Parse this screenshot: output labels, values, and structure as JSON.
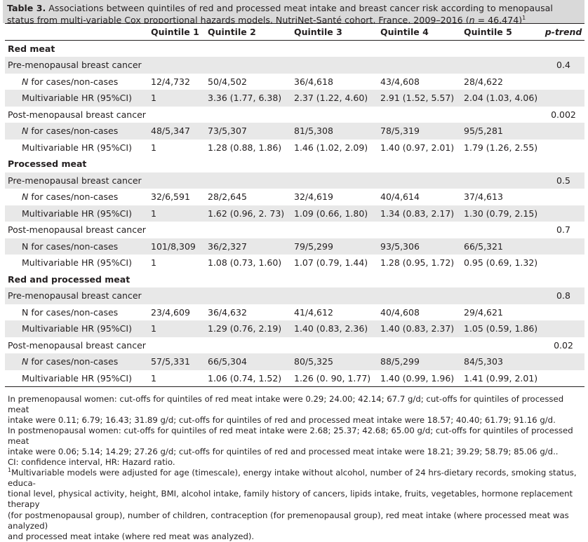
{
  "caption": {
    "label": "Table 3.",
    "text_a": "Associations between quintiles of red and processed meat intake and breast cancer risk according to menopausal status from multi-variable Cox proportional hazards models, NutriNet-Santé cohort, France, 2009–2016 (",
    "n_symbol": "n",
    "text_b": " = 46,474)",
    "sup": "1"
  },
  "headers": [
    "",
    "Quintile 1",
    "Quintile 2",
    "Quintile 3",
    "Quintile 4",
    "Quintile 5",
    "p-trend"
  ],
  "sections": [
    {
      "title": "Red meat",
      "groups": [
        {
          "label": "Pre-menopausal breast cancer",
          "p_trend": "0.4",
          "rows": [
            {
              "label_italic": "N",
              "label_rest": " for cases/non-cases",
              "values": [
                "12/4,732",
                "50/4,502",
                "36/4,618",
                "43/4,608",
                "28/4,622"
              ]
            },
            {
              "label_italic": "",
              "label_rest": "Multivariable HR (95%CI)",
              "values": [
                "1",
                "3.36 (1.77, 6.38)",
                "2.37 (1.22, 4.60)",
                "2.91 (1.52, 5.57)",
                "2.04 (1.03, 4.06)"
              ]
            }
          ]
        },
        {
          "label": "Post-menopausal breast cancer",
          "p_trend": "0.002",
          "rows": [
            {
              "label_italic": "N",
              "label_rest": " for cases/non-cases",
              "values": [
                "48/5,347",
                "73/5,307",
                "81/5,308",
                "78/5,319",
                "95/5,281"
              ]
            },
            {
              "label_italic": "",
              "label_rest": "Multivariable HR (95%CI)",
              "values": [
                "1",
                "1.28 (0.88, 1.86)",
                "1.46 (1.02, 2.09)",
                "1.40 (0.97, 2.01)",
                "1.79 (1.26, 2.55)"
              ]
            }
          ]
        }
      ]
    },
    {
      "title": "Processed meat",
      "groups": [
        {
          "label": "Pre-menopausal breast cancer",
          "p_trend": "0.5",
          "rows": [
            {
              "label_italic": "N",
              "label_rest": " for cases/non-cases",
              "values": [
                "32/6,591",
                "28/2,645",
                "32/4,619",
                "40/4,614",
                "37/4,613"
              ]
            },
            {
              "label_italic": "",
              "label_rest": "Multivariable HR (95%CI)",
              "values": [
                "1",
                "1.62 (0.96, 2. 73)",
                "1.09 (0.66, 1.80)",
                "1.34 (0.83, 2.17)",
                "1.30 (0.79, 2.15)"
              ]
            }
          ]
        },
        {
          "label": "Post-menopausal breast cancer",
          "p_trend": "0.7",
          "rows": [
            {
              "label_italic": "",
              "label_rest": "N for cases/non-cases",
              "values": [
                "101/8,309",
                "36/2,327",
                "79/5,299",
                "93/5,306",
                "66/5,321"
              ]
            },
            {
              "label_italic": "",
              "label_rest": "Multivariable HR (95%CI)",
              "values": [
                "1",
                "1.08 (0.73, 1.60)",
                "1.07 (0.79, 1.44)",
                "1.28 (0.95, 1.72)",
                "0.95 (0.69, 1.32)"
              ]
            }
          ]
        }
      ]
    },
    {
      "title": "Red and processed meat",
      "groups": [
        {
          "label": "Pre-menopausal breast cancer",
          "p_trend": "0.8",
          "rows": [
            {
              "label_italic": "",
              "label_rest": "N for cases/non-cases",
              "values": [
                "23/4,609",
                "36/4,632",
                "41/4,612",
                "40/4,608",
                "29/4,621"
              ]
            },
            {
              "label_italic": "",
              "label_rest": "Multivariable HR (95%CI)",
              "values": [
                "1",
                "1.29 (0.76, 2.19)",
                "1.40 (0.83, 2.36)",
                "1.40 (0.83, 2.37)",
                "1.05 (0.59, 1.86)"
              ]
            }
          ]
        },
        {
          "label": "Post-menopausal breast cancer",
          "p_trend": "0.02",
          "rows": [
            {
              "label_italic": "N",
              "label_rest": " for cases/non-cases",
              "values": [
                "57/5,331",
                "66/5,304",
                "80/5,325",
                "88/5,299",
                "84/5,303"
              ]
            },
            {
              "label_italic": "",
              "label_rest": "Multivariable HR (95%CI)",
              "values": [
                "1",
                "1.06 (0.74, 1.52)",
                "1.26 (0. 90, 1.77)",
                "1.40 (0.99, 1.96)",
                "1.41 (0.99, 2.01)"
              ]
            }
          ]
        }
      ]
    }
  ],
  "footnotes": {
    "line1": "In premenopausal women: cut-offs for quintiles of red meat intake were 0.29; 24.00; 42.14; 67.7 g/d; cut-offs for quintiles of processed meat",
    "line2": "intake were 0.11; 6.79; 16.43; 31.89 g/d; cut-offs for quintiles of red and processed meat intake were 18.57; 40.40; 61.79; 91.16 g/d.",
    "line3": "In postmenopausal women: cut-offs for quintiles of red meat intake were 2.68; 25.37; 42.68; 65.00 g/d; cut-offs for quintiles of processed meat",
    "line4": "intake were 0.06; 5.14; 14.29; 27.26 g/d; cut-offs for quintiles of red and processed meat intake were 18.21; 39.29; 58.79; 85.06 g/d..",
    "abbrev": "CI: confidence interval, HR: Hazard ratio.",
    "adj_sup": "1",
    "adj1": "Multivariable models were adjusted for age (timescale), energy intake without alcohol, number of 24 hrs-dietary records, smoking status, educa-",
    "adj2": "tional level, physical activity, height, BMI, alcohol intake, family history of cancers, lipids intake, fruits, vegetables, hormone replacement therapy",
    "adj3": "(for postmenopausal group), number of children, contraception (for premenopausal group), red meat intake (where processed meat was analyzed)",
    "adj4": "and processed meat intake (where red meat was analyzed)."
  },
  "colors": {
    "caption_bg": "#d9d9d9",
    "row_shade": "#e8e8e8",
    "text": "#231f20"
  }
}
